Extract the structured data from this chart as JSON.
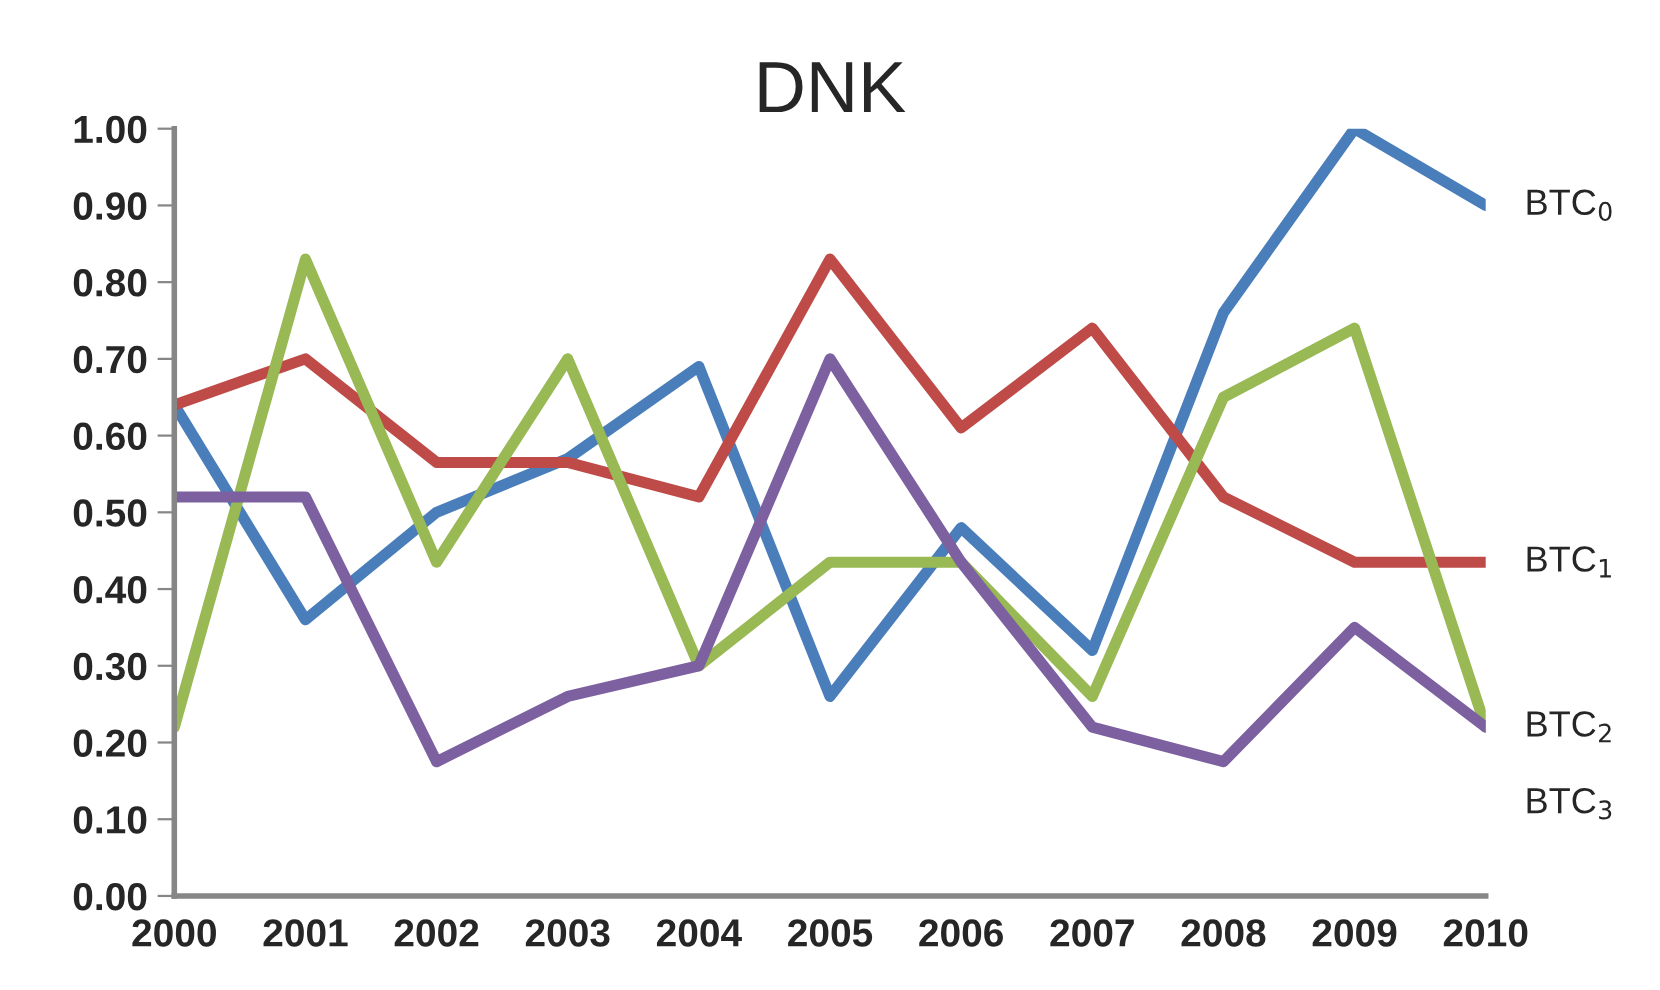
{
  "chart_data": {
    "type": "line",
    "title": "DNK",
    "categories": [
      "2000",
      "2001",
      "2002",
      "2003",
      "2004",
      "2005",
      "2006",
      "2007",
      "2008",
      "2009",
      "2010"
    ],
    "series": [
      {
        "name": "BTC$_{0}$",
        "color": "#4a7ebb",
        "values": [
          0.64,
          0.36,
          0.5,
          0.57,
          0.69,
          0.26,
          0.48,
          0.32,
          0.76,
          1.0,
          0.9
        ]
      },
      {
        "name": "BTC$_{1}$",
        "color": "#be4b48",
        "values": [
          0.64,
          0.7,
          0.565,
          0.565,
          0.52,
          0.83,
          0.61,
          0.74,
          0.52,
          0.435,
          0.435
        ]
      },
      {
        "name": "BTC$_{2}$",
        "color": "#98b954",
        "values": [
          0.22,
          0.83,
          0.435,
          0.7,
          0.3,
          0.435,
          0.435,
          0.26,
          0.65,
          0.74,
          0.22
        ]
      },
      {
        "name": "BTC$_{3}$",
        "color": "#7d60a0",
        "values": [
          0.52,
          0.52,
          0.175,
          0.26,
          0.3,
          0.7,
          0.435,
          0.22,
          0.175,
          0.35,
          0.22
        ]
      }
    ],
    "ylim": [
      0,
      1
    ],
    "yticks": [
      {
        "value": 0,
        "label": "0.00"
      },
      {
        "value": 0.1,
        "label": "0.10"
      },
      {
        "value": 0.2,
        "label": "0.20"
      },
      {
        "value": 0.3,
        "label": "0.30"
      },
      {
        "value": 0.4,
        "label": "0.40"
      },
      {
        "value": 0.5,
        "label": "0.50"
      },
      {
        "value": 0.6,
        "label": "0.60"
      },
      {
        "value": 0.7,
        "label": "0.70"
      },
      {
        "value": 0.8,
        "label": "0.80"
      },
      {
        "value": 0.9,
        "label": "0.90"
      },
      {
        "value": 1.0,
        "label": "1.00"
      }
    ],
    "grid": false,
    "legend": false,
    "marker": "none",
    "line_style": "solid"
  }
}
